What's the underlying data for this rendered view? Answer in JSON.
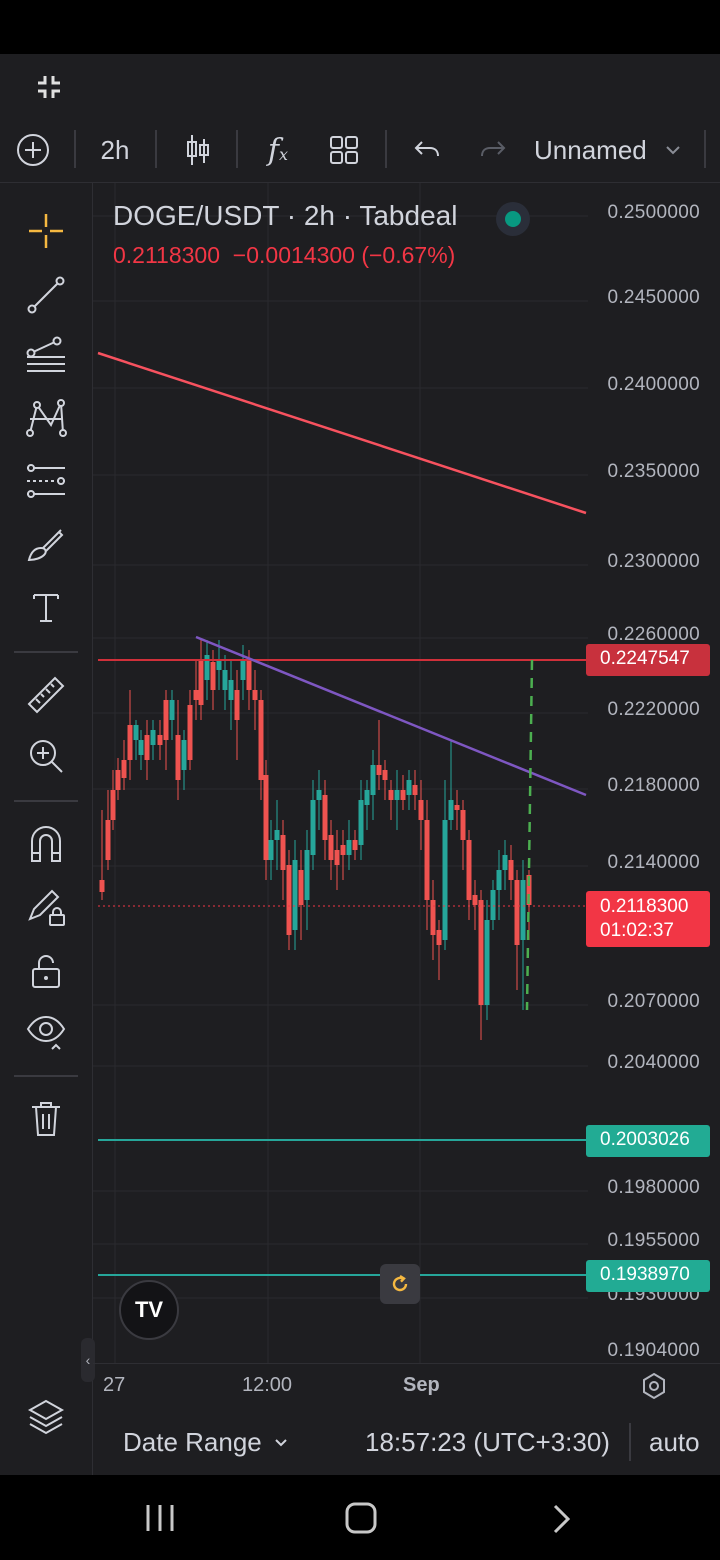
{
  "toolbar": {
    "interval": "2h",
    "layout_name": "Unnamed"
  },
  "legend": {
    "title": "DOGE/USDT · 2h · Tabdeal",
    "last": "0.2118300",
    "change": "−0.0014300 (−0.67%)"
  },
  "price_axis": {
    "labels": [
      "0.2500000",
      "0.2450000",
      "0.2400000",
      "0.2350000",
      "0.2300000",
      "0.2260000",
      "0.2220000",
      "0.2180000",
      "0.2140000",
      "0.2070000",
      "0.2040000",
      "0.1980000",
      "0.1955000",
      "0.1930000",
      "0.1904000"
    ],
    "tags": {
      "resistance": "0.2247547",
      "current_price": "0.2118300",
      "countdown": "01:02:37",
      "support1": "0.2003026",
      "support2": "0.1938970"
    }
  },
  "time_axis": {
    "labels": [
      "27",
      "12:00",
      "Sep"
    ]
  },
  "bottom_bar": {
    "date_range": "Date Range",
    "clock": "18:57:23 (UTC+3:30)",
    "scale": "auto"
  },
  "colors": {
    "up": "#26a69a",
    "down": "#ef5350",
    "resistance": "#d0303a",
    "support": "#26a69a",
    "trendline_red": "#f7525f",
    "trendline_purple": "#7e57c2",
    "accent": "#f5b841"
  },
  "icons": {
    "sidebar": [
      "crosshair-icon",
      "trend-line-icon",
      "fib-retracement-icon",
      "pattern-icon",
      "forecast-icon",
      "brush-icon",
      "text-icon",
      "ruler-icon",
      "zoom-in-icon",
      "magnet-icon",
      "lock-drawing-icon",
      "unlock-icon",
      "eye-icon",
      "trash-icon"
    ]
  }
}
